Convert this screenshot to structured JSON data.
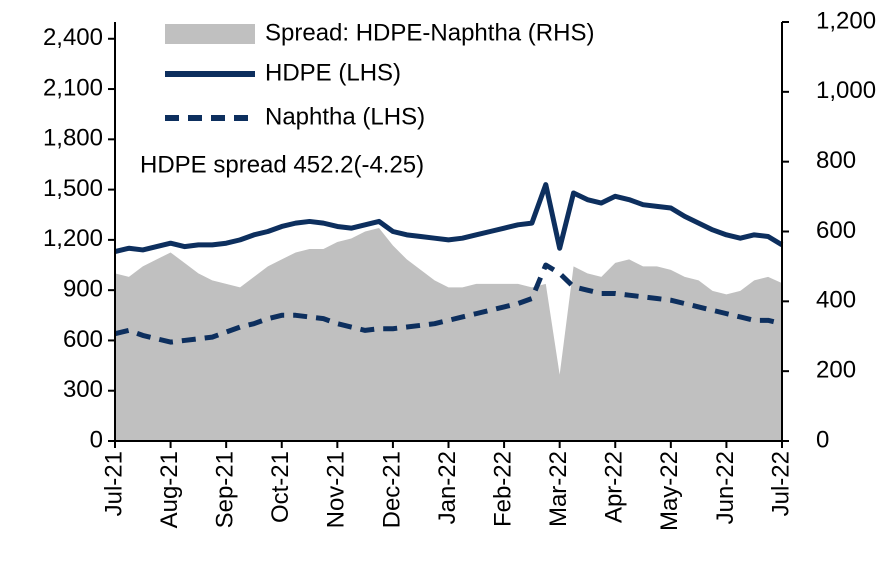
{
  "chart_data": {
    "type": "line",
    "annotations": [
      "HDPE spread 452.2(-4.25)"
    ],
    "categories": [
      "Jul-21",
      null,
      null,
      null,
      "Aug-21",
      null,
      null,
      null,
      "Sep-21",
      null,
      null,
      null,
      "Oct-21",
      null,
      null,
      null,
      "Nov-21",
      null,
      null,
      null,
      "Dec-21",
      null,
      null,
      null,
      "Jan-22",
      null,
      null,
      null,
      "Feb-22",
      null,
      null,
      null,
      "Mar-22",
      null,
      null,
      null,
      "Apr-22",
      null,
      null,
      null,
      "May-22",
      null,
      null,
      null,
      "Jun-22",
      null,
      null,
      null,
      "Jul-22"
    ],
    "series": [
      {
        "name": "Spread: HDPE-Naphtha (RHS)",
        "kind": "area",
        "axis": "y2",
        "color": "#c0c0c0",
        "values": [
          480,
          470,
          500,
          520,
          540,
          510,
          480,
          460,
          450,
          440,
          470,
          500,
          520,
          540,
          550,
          550,
          570,
          580,
          600,
          610,
          560,
          520,
          490,
          460,
          440,
          440,
          450,
          450,
          450,
          450,
          440,
          450,
          190,
          500,
          480,
          470,
          510,
          520,
          500,
          500,
          490,
          470,
          460,
          430,
          420,
          430,
          460,
          470,
          452
        ]
      },
      {
        "name": "HDPE (LHS)",
        "kind": "line",
        "color": "#0d2f5e",
        "values": [
          1130,
          1150,
          1140,
          1160,
          1180,
          1160,
          1170,
          1170,
          1180,
          1200,
          1230,
          1250,
          1280,
          1300,
          1310,
          1300,
          1280,
          1270,
          1290,
          1310,
          1250,
          1230,
          1220,
          1210,
          1200,
          1210,
          1230,
          1250,
          1270,
          1290,
          1300,
          1530,
          1150,
          1480,
          1440,
          1420,
          1460,
          1440,
          1410,
          1400,
          1390,
          1340,
          1300,
          1260,
          1230,
          1210,
          1230,
          1220,
          1170
        ]
      },
      {
        "name": "Naphtha (LHS)",
        "kind": "dashed",
        "color": "#0d2f5e",
        "values": [
          640,
          660,
          630,
          610,
          590,
          600,
          610,
          620,
          650,
          680,
          700,
          730,
          750,
          750,
          740,
          730,
          700,
          680,
          660,
          670,
          670,
          680,
          690,
          700,
          720,
          740,
          760,
          780,
          800,
          820,
          850,
          1050,
          1000,
          920,
          900,
          880,
          880,
          870,
          860,
          850,
          840,
          820,
          800,
          780,
          760,
          740,
          720,
          720,
          700
        ]
      }
    ],
    "ylim": [
      0,
      2500
    ],
    "yticks": [
      0,
      300,
      600,
      900,
      {
        "value": 1200,
        "label": "1,200"
      },
      {
        "value": 1500,
        "label": "1,500"
      },
      {
        "value": 1800,
        "label": "1,800"
      },
      {
        "value": 2100,
        "label": "2,100"
      },
      {
        "value": 2400,
        "label": "2,400"
      }
    ],
    "y2lim": [
      0,
      1200
    ],
    "y2ticks": [
      0,
      200,
      400,
      600,
      800,
      {
        "value": 1000,
        "label": "1,000"
      },
      {
        "value": 1200,
        "label": "1,200"
      }
    ],
    "grid": false
  }
}
